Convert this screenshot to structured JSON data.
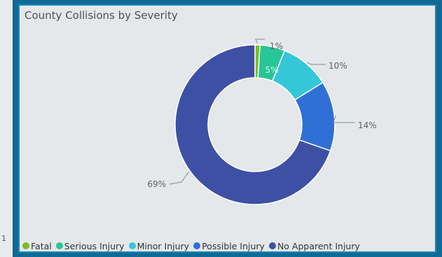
{
  "left_edge_text": "1",
  "chart_data": {
    "type": "pie",
    "donut": true,
    "title": "County Collisions by Severity",
    "categories": [
      "Fatal",
      "Serious Injury",
      "Minor Injury",
      "Possible Injury",
      "No Apparent Injury"
    ],
    "values": [
      1,
      5,
      10,
      14,
      69
    ],
    "data_labels": [
      "1%",
      "5%",
      "10%",
      "14%",
      "69%"
    ],
    "colors": [
      "#7dbb2c",
      "#28c597",
      "#35c6d8",
      "#2f6fd6",
      "#3d50a3"
    ],
    "legend_position": "bottom-left"
  }
}
